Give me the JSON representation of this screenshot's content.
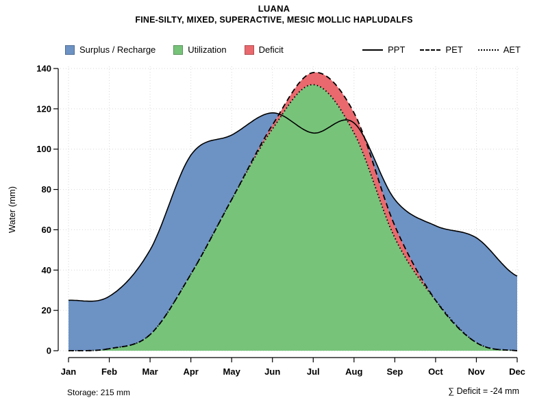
{
  "chart_data": {
    "type": "area",
    "title": "LUANA",
    "subtitle": "FINE-SILTY, MIXED, SUPERACTIVE, MESIC MOLLIC HAPLUDALFS",
    "ylabel": "Water (mm)",
    "xlabel": "",
    "ylim": [
      0,
      140
    ],
    "yticks": [
      0,
      20,
      40,
      60,
      80,
      100,
      120,
      140
    ],
    "grid": true,
    "legend_position": "top",
    "months": [
      "Jan",
      "Feb",
      "Mar",
      "Apr",
      "May",
      "Jun",
      "Jul",
      "Aug",
      "Sep",
      "Oct",
      "Nov",
      "Dec"
    ],
    "series": [
      {
        "name": "PPT",
        "line_style": "solid",
        "values": [
          25,
          27,
          50,
          97,
          107,
          118,
          108,
          113,
          75,
          62,
          56,
          37
        ]
      },
      {
        "name": "PET",
        "line_style": "dashed",
        "values": [
          0,
          1,
          8,
          38,
          75,
          112,
          138,
          118,
          62,
          25,
          4,
          0
        ]
      },
      {
        "name": "AET",
        "line_style": "dotted",
        "values": [
          0,
          1,
          8,
          38,
          75,
          110,
          132,
          108,
          56,
          25,
          4,
          0
        ]
      }
    ],
    "areas": [
      {
        "label": "Surplus / Recharge",
        "color": "#6D92C4"
      },
      {
        "label": "Utilization",
        "color": "#77C37A"
      },
      {
        "label": "Deficit",
        "color": "#E9696E"
      }
    ],
    "annotations": {
      "storage": "Storage: 215 mm",
      "deficit_sum": "∑ Deficit = -24 mm"
    }
  }
}
